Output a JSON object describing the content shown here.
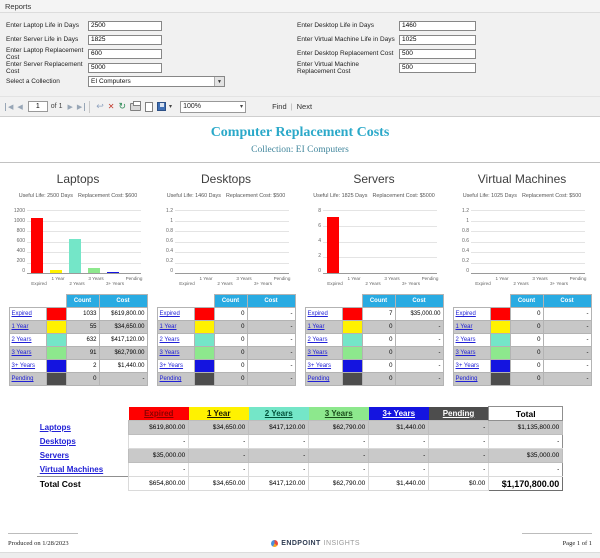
{
  "menu": {
    "reports_label": "Reports"
  },
  "parameters": {
    "left": [
      {
        "label": "Enter Laptop Life in Days",
        "value": "2500"
      },
      {
        "label": "Enter Server Life in Days",
        "value": "1825"
      },
      {
        "label": "Enter Laptop Replacement Cost",
        "value": "600"
      },
      {
        "label": "Enter Server Replacement Cost",
        "value": "5000"
      }
    ],
    "right": [
      {
        "label": "Enter Desktop Life in Days",
        "value": "1460"
      },
      {
        "label": "Enter Virtual Machine Life in Days",
        "value": "1025"
      },
      {
        "label": "Enter Desktop Replacement Cost",
        "value": "500"
      },
      {
        "label": "Enter Virtual Machine Replacement Cost",
        "value": "500"
      }
    ],
    "collection": {
      "label": "Select a Collection",
      "value": "EI Computers"
    }
  },
  "toolbar": {
    "page_current": "1",
    "of_label": "of 1",
    "zoom": "100%",
    "find_label": "Find",
    "next_label": "Next",
    "icons": [
      {
        "name": "first-page-icon",
        "glyph": "◀"
      },
      {
        "name": "prev-page-icon",
        "glyph": "◀"
      },
      {
        "name": "next-page-icon",
        "glyph": "▶"
      },
      {
        "name": "last-page-icon",
        "glyph": "▶"
      },
      {
        "name": "back-icon",
        "glyph": "↩"
      },
      {
        "name": "stop-icon",
        "glyph": "✕"
      },
      {
        "name": "refresh-icon",
        "glyph": "↻"
      },
      {
        "name": "print-icon"
      },
      {
        "name": "page-setup-icon"
      },
      {
        "name": "export-icon"
      },
      {
        "name": "dropdown-arrow-icon",
        "glyph": "▾"
      }
    ]
  },
  "report": {
    "title": "Computer Replacement Costs",
    "subtitle": "Collection: EI Computers"
  },
  "categories": [
    "Expired",
    "1 Year",
    "2 Years",
    "3 Years",
    "3+ Years",
    "Pending"
  ],
  "category_colors": [
    "#ff0000",
    "#fff200",
    "#74e6c8",
    "#8de88d",
    "#1414e0",
    "#4d4d4d"
  ],
  "summary_header_text_colors": [
    "#8b0000",
    "#1a1a00",
    "#00513a",
    "#1a4d1a",
    "#ffffff",
    "#ffffff"
  ],
  "table_header_bg": "#29abe2",
  "title_color": "#2ba9c9",
  "sections": [
    {
      "name": "Laptops",
      "useful_life": "Useful Life: 2500 Days",
      "replacement_cost": "Replacement Cost: $600",
      "chart": {
        "type": "bar",
        "ymax": 1200,
        "ticks": [
          "1200",
          "1000",
          "800",
          "600",
          "400",
          "200",
          "0"
        ],
        "values": [
          1033,
          55,
          632,
          91,
          2,
          0
        ]
      },
      "table": {
        "count_header": "Count",
        "cost_header": "Cost",
        "counts": [
          "1033",
          "55",
          "632",
          "91",
          "2",
          "0"
        ],
        "costs": [
          "$619,800.00",
          "$34,650.00",
          "$417,120.00",
          "$62,790.00",
          "$1,440.00",
          "-"
        ]
      }
    },
    {
      "name": "Desktops",
      "useful_life": "Useful Life: 1460 Days",
      "replacement_cost": "Replacement Cost: $500",
      "chart": {
        "type": "bar",
        "ymax": 1.2,
        "ticks": [
          "1.2",
          "1",
          "0.8",
          "0.6",
          "0.4",
          "0.2",
          "0"
        ],
        "values": [
          0,
          0,
          0,
          0,
          0,
          0
        ]
      },
      "table": {
        "count_header": "Count",
        "cost_header": "Cost",
        "counts": [
          "0",
          "0",
          "0",
          "0",
          "0",
          "0"
        ],
        "costs": [
          "-",
          "-",
          "-",
          "-",
          "-",
          "-"
        ]
      }
    },
    {
      "name": "Servers",
      "useful_life": "Useful Life: 1825 Days",
      "replacement_cost": "Replacement Cost: $5000",
      "chart": {
        "type": "bar",
        "ymax": 8,
        "ticks": [
          "8",
          "6",
          "4",
          "2",
          "0"
        ],
        "values": [
          7,
          0,
          0,
          0,
          0,
          0
        ]
      },
      "table": {
        "count_header": "Count",
        "cost_header": "Cost",
        "counts": [
          "7",
          "0",
          "0",
          "0",
          "0",
          "0"
        ],
        "costs": [
          "$35,000.00",
          "-",
          "-",
          "-",
          "-",
          "-"
        ]
      }
    },
    {
      "name": "Virtual Machines",
      "useful_life": "Useful Life: 1025 Days",
      "replacement_cost": "Replacement Cost: $500",
      "chart": {
        "type": "bar",
        "ymax": 1.2,
        "ticks": [
          "1.2",
          "1",
          "0.8",
          "0.6",
          "0.4",
          "0.2",
          "0"
        ],
        "values": [
          0,
          0,
          0,
          0,
          0,
          0
        ]
      },
      "table": {
        "count_header": "Count",
        "cost_header": "Cost",
        "counts": [
          "0",
          "0",
          "0",
          "0",
          "0",
          "0"
        ],
        "costs": [
          "-",
          "-",
          "-",
          "-",
          "-",
          "-"
        ]
      }
    }
  ],
  "summary": {
    "col_headers": [
      "Expired",
      "1 Year",
      "2 Years",
      "3 Years",
      "3+ Years",
      "Pending",
      "Total"
    ],
    "rows": [
      {
        "label": "Laptops",
        "values": [
          "$619,800.00",
          "$34,650.00",
          "$417,120.00",
          "$62,790.00",
          "$1,440.00",
          "-",
          "$1,135,800.00"
        ]
      },
      {
        "label": "Desktops",
        "values": [
          "-",
          "-",
          "-",
          "-",
          "-",
          "-",
          "-"
        ]
      },
      {
        "label": "Servers",
        "values": [
          "$35,000.00",
          "-",
          "-",
          "-",
          "-",
          "-",
          "$35,000.00"
        ]
      },
      {
        "label": "Virtual Machines",
        "values": [
          "-",
          "-",
          "-",
          "-",
          "-",
          "-",
          "-"
        ]
      }
    ],
    "total_row": {
      "label": "Total Cost",
      "values": [
        "$654,800.00",
        "$34,650.00",
        "$417,120.00",
        "$62,790.00",
        "$1,440.00",
        "$0.00",
        "$1,170,800.00"
      ]
    }
  },
  "footer": {
    "produced": "Produced on 1/28/2023",
    "brand_bold": "ENDPOINT",
    "brand_light": "INSIGHTS",
    "page": "Page 1 of 1"
  }
}
